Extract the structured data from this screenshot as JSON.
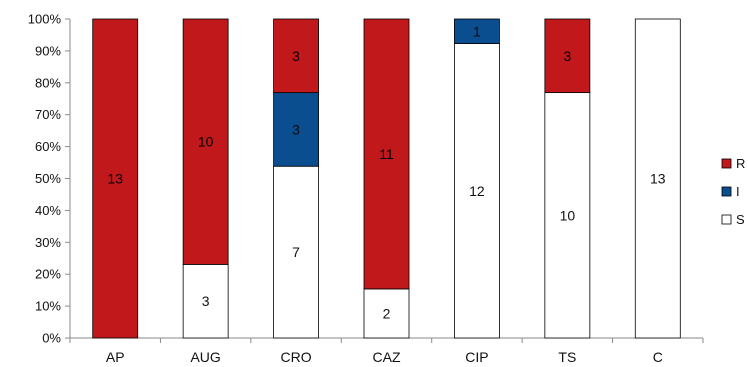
{
  "chart_data": {
    "type": "bar",
    "stacked": true,
    "normalized": true,
    "categories": [
      "AP",
      "AUG",
      "CRO",
      "CAZ",
      "CIP",
      "TS",
      "C"
    ],
    "series": [
      {
        "name": "S",
        "values": [
          0,
          3,
          7,
          2,
          12,
          10,
          13
        ],
        "color": "#ffffff"
      },
      {
        "name": "I",
        "values": [
          0,
          0,
          3,
          0,
          1,
          0,
          0
        ],
        "color": "#0b4e8f"
      },
      {
        "name": "R",
        "values": [
          13,
          10,
          3,
          11,
          0,
          3,
          0
        ],
        "color": "#c1181c"
      }
    ],
    "data_labels": {
      "S": [
        "",
        "3",
        "7",
        "2",
        "12",
        "10",
        "13"
      ],
      "I": [
        "",
        "",
        "3",
        "",
        "1",
        "",
        ""
      ],
      "R": [
        "13",
        "10",
        "3",
        "11",
        "",
        "3",
        ""
      ]
    },
    "yticks": [
      "0%",
      "10%",
      "20%",
      "30%",
      "40%",
      "50%",
      "60%",
      "70%",
      "80%",
      "90%",
      "100%"
    ],
    "ylim": [
      0,
      100
    ],
    "grid": false,
    "legend": {
      "position": "right",
      "items": [
        {
          "label": "R",
          "color": "#c1181c"
        },
        {
          "label": "I",
          "color": "#0b4e8f"
        },
        {
          "label": "S",
          "color": "#ffffff"
        }
      ]
    },
    "title": "",
    "xlabel": "",
    "ylabel": ""
  }
}
